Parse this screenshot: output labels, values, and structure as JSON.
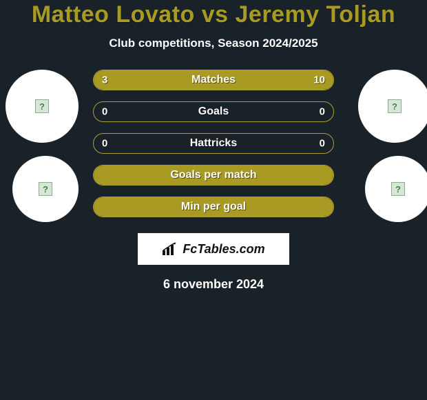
{
  "title_color": "#a89a22",
  "title": "Matteo Lovato vs Jeremy Toljan",
  "subtitle": "Club competitions, Season 2024/2025",
  "background_color": "#1a2229",
  "bar_color": "#a89a22",
  "bar_border_color": "#b0a033",
  "text_color": "#ffffff",
  "bars": [
    {
      "label": "Matches",
      "left": "3",
      "right": "10",
      "left_pct": 23,
      "right_pct": 77
    },
    {
      "label": "Goals",
      "left": "0",
      "right": "0",
      "left_pct": 0,
      "right_pct": 0
    },
    {
      "label": "Hattricks",
      "left": "0",
      "right": "0",
      "left_pct": 0,
      "right_pct": 0
    },
    {
      "label": "Goals per match",
      "left": "",
      "right": "",
      "left_pct": 100,
      "right_pct": 0
    },
    {
      "label": "Min per goal",
      "left": "",
      "right": "",
      "left_pct": 100,
      "right_pct": 0
    }
  ],
  "logo_text": "FcTables.com",
  "date": "6 november 2024",
  "title_fontsize": 34,
  "subtitle_fontsize": 17,
  "barlabel_fontsize": 16,
  "date_fontsize": 18,
  "aspect": "620x580"
}
